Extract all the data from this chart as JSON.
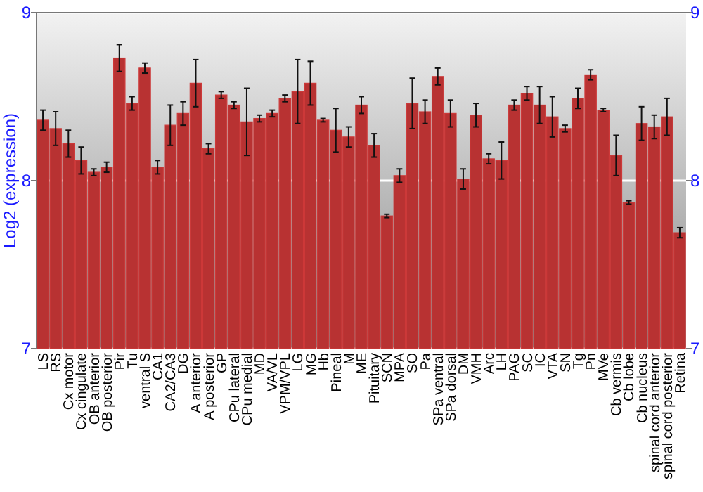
{
  "chart_data": {
    "type": "bar",
    "ylabel": "Log2 (expression)",
    "categories": [
      "LS",
      "RS",
      "Cx motor",
      "Cx cingulate",
      "OB anterior",
      "OB posterior",
      "Pir",
      "Tu",
      "ventral S",
      "CA1",
      "CA2/CA3",
      "DG",
      "A anterior",
      "A posterior",
      "GP",
      "CPu lateral",
      "CPu medial",
      "MD",
      "VA/VL",
      "VPM/VPL",
      "LG",
      "MG",
      "Hb",
      "Pineal",
      "M",
      "ME",
      "Pituitary",
      "SCN",
      "MPA",
      "SO",
      "Pa",
      "SPa ventral",
      "SPa dorsal",
      "DM",
      "VMH",
      "Arc",
      "LH",
      "PAG",
      "SC",
      "IC",
      "VTA",
      "SN",
      "Tg",
      "Pn",
      "MVe",
      "Cb vermis",
      "Cb lobe",
      "Cb nucleus",
      "spinal cord anterior",
      "spinal cord posterior",
      "Retina"
    ],
    "series": [
      {
        "color": "#b83232",
        "values": [
          8.36,
          8.31,
          8.22,
          8.12,
          8.05,
          8.08,
          8.73,
          8.46,
          8.67,
          8.08,
          8.33,
          8.4,
          8.58,
          8.19,
          8.51,
          8.45,
          8.35,
          8.37,
          8.4,
          8.49,
          8.53,
          8.58,
          8.36,
          8.3,
          8.26,
          8.45,
          8.21,
          7.79,
          8.03,
          8.46,
          8.41,
          8.62,
          8.4,
          8.01,
          8.39,
          8.13,
          8.12,
          8.45,
          8.52,
          8.45,
          8.38,
          8.31,
          8.49,
          8.63,
          8.42,
          8.15,
          7.87,
          8.34,
          8.32,
          8.38,
          7.69
        ],
        "errors": [
          0.06,
          0.1,
          0.08,
          0.08,
          0.02,
          0.03,
          0.08,
          0.04,
          0.03,
          0.04,
          0.12,
          0.07,
          0.14,
          0.03,
          0.02,
          0.02,
          0.2,
          0.02,
          0.02,
          0.02,
          0.19,
          0.13,
          0.01,
          0.13,
          0.06,
          0.05,
          0.07,
          0.01,
          0.04,
          0.15,
          0.07,
          0.05,
          0.08,
          0.06,
          0.07,
          0.03,
          0.11,
          0.03,
          0.04,
          0.11,
          0.12,
          0.02,
          0.06,
          0.03,
          0.01,
          0.12,
          0.01,
          0.1,
          0.07,
          0.11,
          0.03
        ]
      }
    ],
    "ylim": [
      7,
      9
    ],
    "yticks": [
      7,
      8,
      9
    ],
    "y2lim": [
      7,
      9
    ],
    "y2ticks": [
      7,
      8,
      9
    ],
    "grid": "y"
  }
}
